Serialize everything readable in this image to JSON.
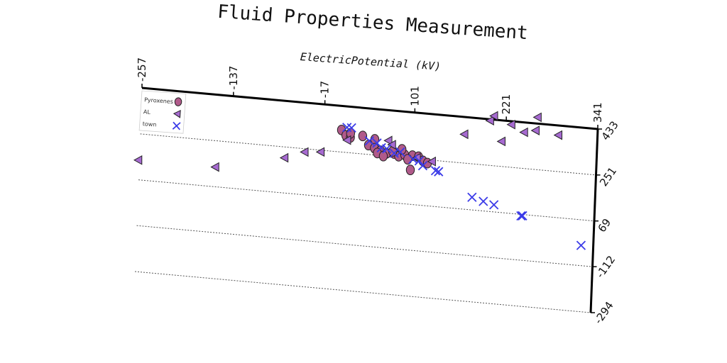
{
  "chart_data": {
    "type": "scatter",
    "title": "Fluid Properties Measurement",
    "xlabel": "ElectricPotential (kV)",
    "ylabel": "",
    "xlim": [
      -257,
      341
    ],
    "ylim": [
      -294,
      433
    ],
    "x_ticks": [
      "-257",
      "-137",
      "-17",
      "101",
      "221",
      "341"
    ],
    "y_ticks": [
      "-294",
      "-112",
      "69",
      "251",
      "433"
    ],
    "grid": "horizontal dashed",
    "legend_position": "top-left",
    "series": [
      {
        "name": "Pyroxenes",
        "marker": "circle",
        "color": "#b05a8a",
        "points": [
          [
            6,
            338
          ],
          [
            12,
            318
          ],
          [
            18,
            312
          ],
          [
            34,
            322
          ],
          [
            50,
            313
          ],
          [
            42,
            288
          ],
          [
            50,
            278
          ],
          [
            58,
            270
          ],
          [
            66,
            262
          ],
          [
            76,
            264
          ],
          [
            54,
            260
          ],
          [
            62,
            250
          ],
          [
            82,
            255
          ],
          [
            90,
            262
          ],
          [
            100,
            262
          ],
          [
            108,
            260
          ],
          [
            114,
            245
          ],
          [
            120,
            238
          ],
          [
            74,
            272
          ],
          [
            94,
            246
          ],
          [
            86,
            283
          ],
          [
            18,
            328
          ],
          [
            98,
            205
          ]
        ]
      },
      {
        "name": "AL",
        "marker": "triangle-left",
        "color": "#a66ad0",
        "points": [
          [
            -258,
            147
          ],
          [
            -157,
            147
          ],
          [
            -67,
            208
          ],
          [
            -41,
            238
          ],
          [
            -20,
            244
          ],
          [
            14,
            300
          ],
          [
            68,
            313
          ],
          [
            73,
            298
          ],
          [
            106,
            255
          ],
          [
            126,
            246
          ],
          [
            167,
            365
          ],
          [
            200,
            428
          ],
          [
            205,
            448
          ],
          [
            216,
            350
          ],
          [
            228,
            420
          ],
          [
            245,
            394
          ],
          [
            262,
            458
          ],
          [
            260,
            405
          ],
          [
            290,
            395
          ]
        ]
      },
      {
        "name": "town",
        "marker": "x",
        "color": "#3b3be8",
        "points": [
          [
            13,
            350
          ],
          [
            19,
            350
          ],
          [
            43,
            305
          ],
          [
            53,
            299
          ],
          [
            59,
            282
          ],
          [
            66,
            280
          ],
          [
            76,
            265
          ],
          [
            84,
            272
          ],
          [
            101,
            248
          ],
          [
            109,
            244
          ],
          [
            114,
            226
          ],
          [
            131,
            211
          ],
          [
            135,
            208
          ],
          [
            180,
            119
          ],
          [
            195,
            107
          ],
          [
            209,
            97
          ],
          [
            245,
            63
          ],
          [
            247,
            64
          ],
          [
            325,
            -32
          ]
        ]
      }
    ]
  }
}
